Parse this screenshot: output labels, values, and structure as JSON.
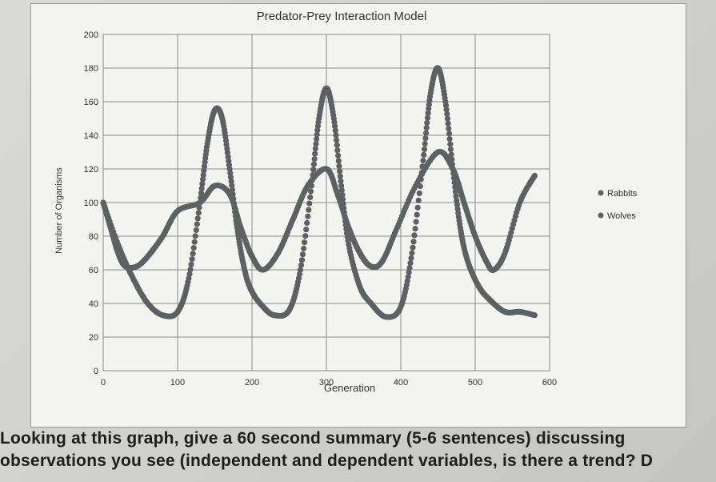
{
  "document": {
    "line1": "Looking at this graph, give a 60 second summary (5-6 sentences) discussing",
    "line2": "observations you see (independent and dependent variables, is there a trend? D"
  },
  "chart_data": {
    "type": "scatter",
    "title": "Predator-Prey Interaction Model",
    "xlabel": "Generation",
    "ylabel": "Number of Organisms",
    "xlim": [
      0,
      600
    ],
    "ylim": [
      0,
      200
    ],
    "xticks": [
      0,
      100,
      200,
      300,
      400,
      500,
      600
    ],
    "yticks": [
      0,
      20,
      40,
      60,
      80,
      100,
      120,
      140,
      160,
      180,
      200
    ],
    "grid": true,
    "legend_position": "right",
    "marker_color": "#5f6063",
    "series": [
      {
        "name": "Rabbits",
        "points": [
          [
            0,
            100
          ],
          [
            20,
            75
          ],
          [
            40,
            55
          ],
          [
            60,
            40
          ],
          [
            80,
            33
          ],
          [
            100,
            35
          ],
          [
            115,
            55
          ],
          [
            130,
            100
          ],
          [
            140,
            135
          ],
          [
            150,
            155
          ],
          [
            160,
            150
          ],
          [
            170,
            120
          ],
          [
            180,
            85
          ],
          [
            190,
            60
          ],
          [
            200,
            47
          ],
          [
            215,
            38
          ],
          [
            230,
            33
          ],
          [
            250,
            36
          ],
          [
            265,
            60
          ],
          [
            280,
            110
          ],
          [
            290,
            150
          ],
          [
            300,
            168
          ],
          [
            310,
            150
          ],
          [
            320,
            110
          ],
          [
            330,
            75
          ],
          [
            345,
            50
          ],
          [
            360,
            40
          ],
          [
            380,
            32
          ],
          [
            400,
            38
          ],
          [
            415,
            70
          ],
          [
            430,
            125
          ],
          [
            440,
            165
          ],
          [
            450,
            180
          ],
          [
            460,
            160
          ],
          [
            470,
            120
          ],
          [
            480,
            85
          ],
          [
            490,
            65
          ],
          [
            505,
            50
          ],
          [
            520,
            42
          ],
          [
            540,
            35
          ],
          [
            560,
            35
          ],
          [
            580,
            33
          ]
        ]
      },
      {
        "name": "Wolves",
        "points": [
          [
            0,
            100
          ],
          [
            10,
            85
          ],
          [
            20,
            70
          ],
          [
            30,
            62
          ],
          [
            45,
            62
          ],
          [
            60,
            68
          ],
          [
            80,
            80
          ],
          [
            100,
            95
          ],
          [
            130,
            100
          ],
          [
            150,
            110
          ],
          [
            170,
            105
          ],
          [
            185,
            85
          ],
          [
            200,
            68
          ],
          [
            215,
            60
          ],
          [
            235,
            70
          ],
          [
            255,
            90
          ],
          [
            275,
            110
          ],
          [
            300,
            120
          ],
          [
            315,
            105
          ],
          [
            330,
            85
          ],
          [
            345,
            70
          ],
          [
            360,
            62
          ],
          [
            375,
            65
          ],
          [
            395,
            85
          ],
          [
            420,
            110
          ],
          [
            450,
            130
          ],
          [
            470,
            120
          ],
          [
            485,
            100
          ],
          [
            500,
            80
          ],
          [
            515,
            65
          ],
          [
            525,
            60
          ],
          [
            540,
            70
          ],
          [
            560,
            100
          ],
          [
            580,
            116
          ]
        ]
      }
    ]
  }
}
